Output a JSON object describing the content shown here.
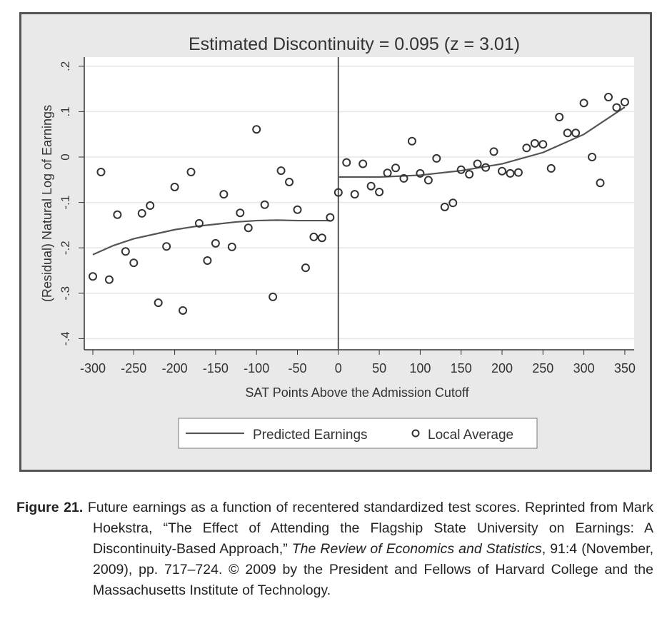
{
  "chart_data": {
    "type": "scatter",
    "title": "Estimated Discontinuity = 0.095 (z = 3.01)",
    "xlabel": "SAT Points Above the Admission Cutoff",
    "ylabel": "(Residual) Natural Log of Earnings",
    "xlim": [
      -300,
      350
    ],
    "ylim": [
      -0.4,
      0.2
    ],
    "xticks": [
      -300,
      -250,
      -200,
      -150,
      -100,
      -50,
      0,
      50,
      100,
      150,
      200,
      250,
      300,
      350
    ],
    "xtick_labels": [
      "-300",
      "-250",
      "-200",
      "-150",
      "-100",
      "-50",
      "0",
      "50",
      "100",
      "150",
      "200",
      "250",
      "300",
      "350"
    ],
    "yticks": [
      -0.4,
      -0.3,
      -0.2,
      -0.1,
      0,
      0.1,
      0.2
    ],
    "ytick_labels": [
      "-.4",
      "-.3",
      "-.2",
      "-.1",
      "0",
      ".1",
      ".2"
    ],
    "grid": true,
    "cutoff": 0,
    "legend": {
      "placement": "bottom",
      "entries": [
        "Predicted Earnings",
        "Local Average"
      ]
    },
    "series": [
      {
        "name": "Local Average",
        "kind": "scatter",
        "x": [
          -300,
          -290,
          -280,
          -270,
          -260,
          -250,
          -240,
          -230,
          -220,
          -210,
          -200,
          -190,
          -180,
          -170,
          -160,
          -150,
          -140,
          -130,
          -120,
          -110,
          -100,
          -90,
          -80,
          -70,
          -60,
          -50,
          -40,
          -30,
          -20,
          -10,
          0,
          10,
          20,
          30,
          40,
          50,
          60,
          70,
          80,
          90,
          100,
          110,
          120,
          130,
          140,
          150,
          160,
          170,
          180,
          190,
          200,
          210,
          220,
          230,
          240,
          250,
          260,
          270,
          280,
          290,
          300,
          310,
          320,
          330,
          340,
          350
        ],
        "y": [
          -0.263,
          -0.033,
          -0.27,
          -0.127,
          -0.208,
          -0.233,
          -0.124,
          -0.107,
          -0.321,
          -0.197,
          -0.066,
          -0.338,
          -0.033,
          -0.146,
          -0.228,
          -0.19,
          -0.082,
          -0.198,
          -0.123,
          -0.156,
          0.061,
          -0.105,
          -0.308,
          -0.03,
          -0.055,
          -0.116,
          -0.244,
          -0.176,
          -0.178,
          -0.133,
          -0.078,
          -0.012,
          -0.082,
          -0.015,
          -0.064,
          -0.077,
          -0.035,
          -0.024,
          -0.047,
          0.035,
          -0.036,
          -0.051,
          -0.003,
          -0.11,
          -0.101,
          -0.028,
          -0.038,
          -0.015,
          -0.023,
          0.012,
          -0.031,
          -0.036,
          -0.034,
          0.02,
          0.03,
          0.028,
          -0.025,
          0.088,
          0.053,
          0.053,
          0.119,
          0,
          -0.057,
          0.132,
          0.109,
          0.121
        ]
      },
      {
        "name": "Predicted Earnings",
        "kind": "line",
        "segments": [
          {
            "x": [
              -300,
              -275,
              -250,
              -225,
              -200,
              -175,
              -150,
              -125,
              -100,
              -75,
              -50,
              -25,
              -10
            ],
            "y": [
              -0.215,
              -0.195,
              -0.18,
              -0.17,
              -0.16,
              -0.153,
              -0.148,
              -0.143,
              -0.14,
              -0.139,
              -0.14,
              -0.14,
              -0.14
            ]
          },
          {
            "x": [
              0,
              50,
              100,
              150,
              200,
              250,
              300,
              350
            ],
            "y": [
              -0.044,
              -0.044,
              -0.04,
              -0.03,
              -0.015,
              0.01,
              0.05,
              0.11
            ]
          }
        ]
      }
    ],
    "colors": {
      "line": "#555555",
      "marker": "#333333",
      "grid": "#e6e6e6",
      "panel": "#e9e9e9"
    }
  },
  "caption": {
    "label": "Figure 21.",
    "text1": " Future earnings as a function of recentered standardized test scores. Reprinted from Mark Hoekstra, “The Effect of Attending the Flagship State University on Earnings: A Discontinuity-Based Approach,” ",
    "journal": "The Review of Economics and Statistics",
    "text2": ", 91:4 (November, 2009), pp. 717–724. © 2009 by the President and Fellows of Harvard College and the Massachusetts Institute of Technology."
  }
}
